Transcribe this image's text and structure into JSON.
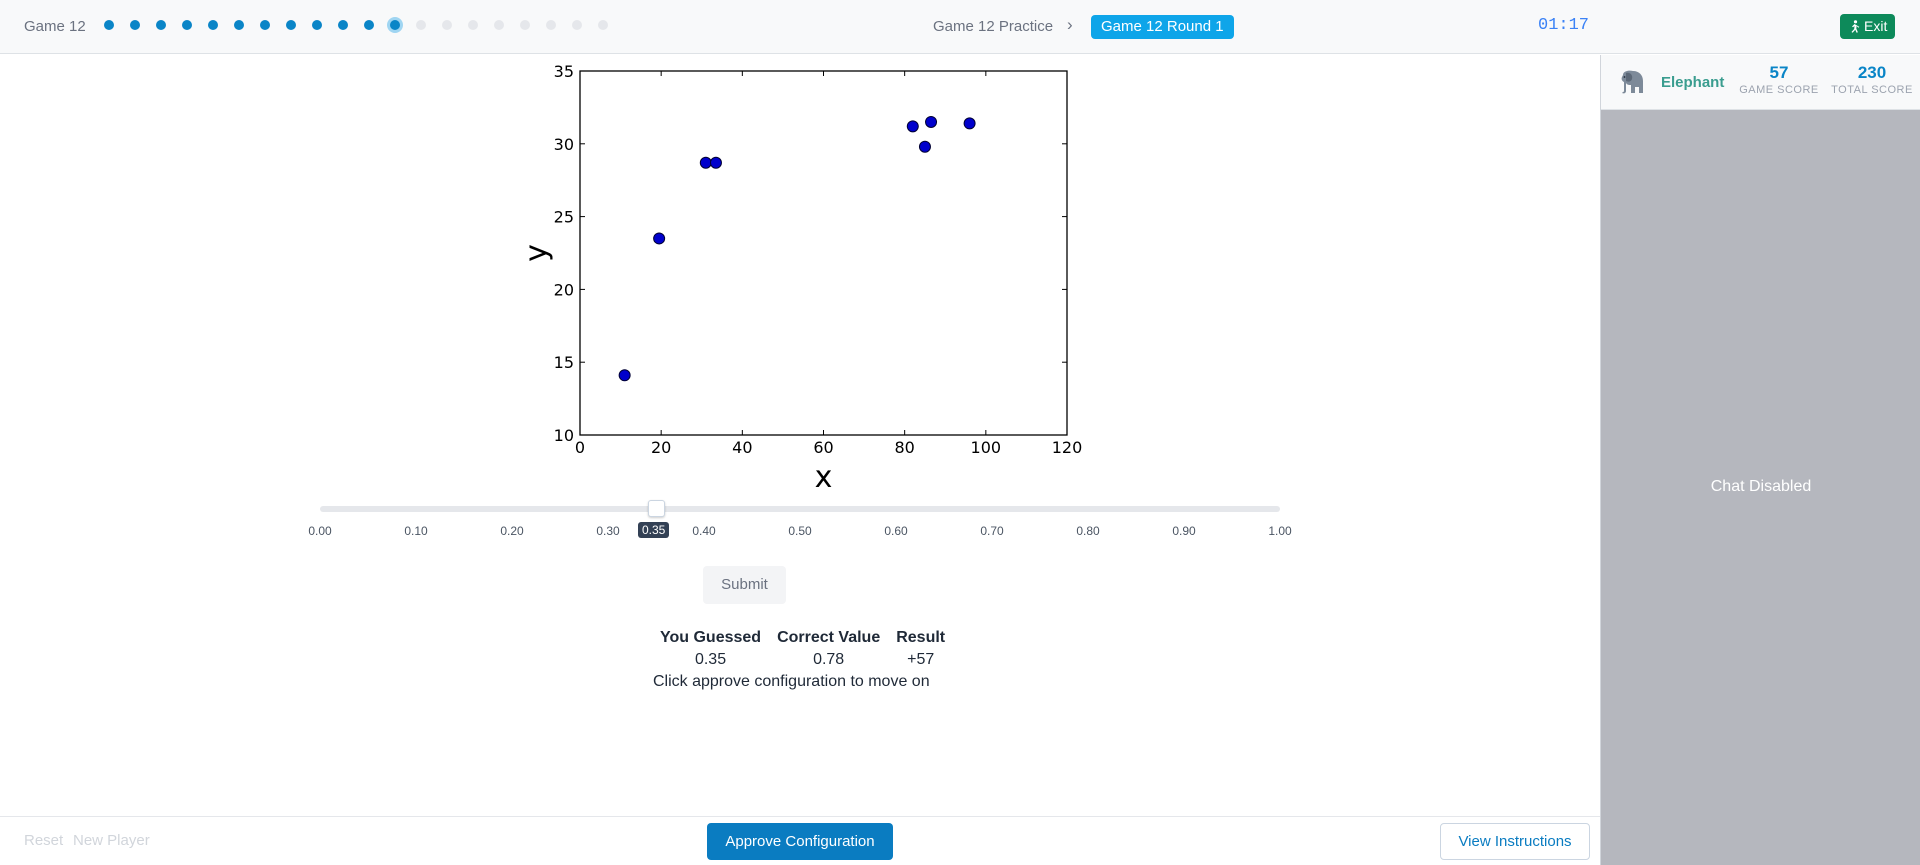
{
  "header": {
    "game_label": "Game 12",
    "progress": {
      "completed": 11,
      "current": 12,
      "total": 20
    },
    "breadcrumb_practice": "Game 12 Practice",
    "breadcrumb_separator": "›",
    "breadcrumb_round": "Game 12 Round 1",
    "timer": "01:17",
    "exit_label": "Exit",
    "exit_icon": "running-person-icon",
    "colors": {
      "accent": "#0a85c7",
      "exit": "#0d8a5a",
      "round_badge": "#0ea5e9"
    }
  },
  "player": {
    "icon": "elephant-icon",
    "name": "Elephant",
    "game_score": "57",
    "game_score_label": "GAME SCORE",
    "total_score": "230",
    "total_score_label": "TOTAL SCORE"
  },
  "chat": {
    "status": "Chat Disabled"
  },
  "chart_data": {
    "type": "scatter",
    "title": "",
    "xlabel": "x",
    "ylabel": "y",
    "xlim": [
      0,
      120
    ],
    "ylim": [
      10,
      35
    ],
    "xticks": [
      "0",
      "20",
      "40",
      "60",
      "80",
      "100",
      "120"
    ],
    "yticks": [
      "10",
      "15",
      "20",
      "25",
      "30",
      "35"
    ],
    "points": [
      {
        "x": 11,
        "y": 14.1
      },
      {
        "x": 19.5,
        "y": 23.5
      },
      {
        "x": 31,
        "y": 28.7
      },
      {
        "x": 33.5,
        "y": 28.7
      },
      {
        "x": 82,
        "y": 31.2
      },
      {
        "x": 85,
        "y": 29.8
      },
      {
        "x": 86.5,
        "y": 31.5
      },
      {
        "x": 96,
        "y": 31.4
      }
    ],
    "marker_color": "#0000cc",
    "grid": false
  },
  "slider": {
    "min": 0,
    "max": 1,
    "value": 0.35,
    "value_label": "0.35",
    "ticks": [
      "0.00",
      "0.10",
      "0.20",
      "0.30",
      "0.40",
      "0.50",
      "0.60",
      "0.70",
      "0.80",
      "0.90",
      "1.00"
    ]
  },
  "submit_label": "Submit",
  "results": {
    "headers": [
      "You Guessed",
      "Correct Value",
      "Result"
    ],
    "values": [
      "0.35",
      "0.78",
      "+57"
    ],
    "message": "Click approve configuration to move on"
  },
  "footer": {
    "reset_label": "Reset",
    "new_player_label": "New Player",
    "approve_label": "Approve Configuration",
    "instructions_label": "View Instructions"
  }
}
